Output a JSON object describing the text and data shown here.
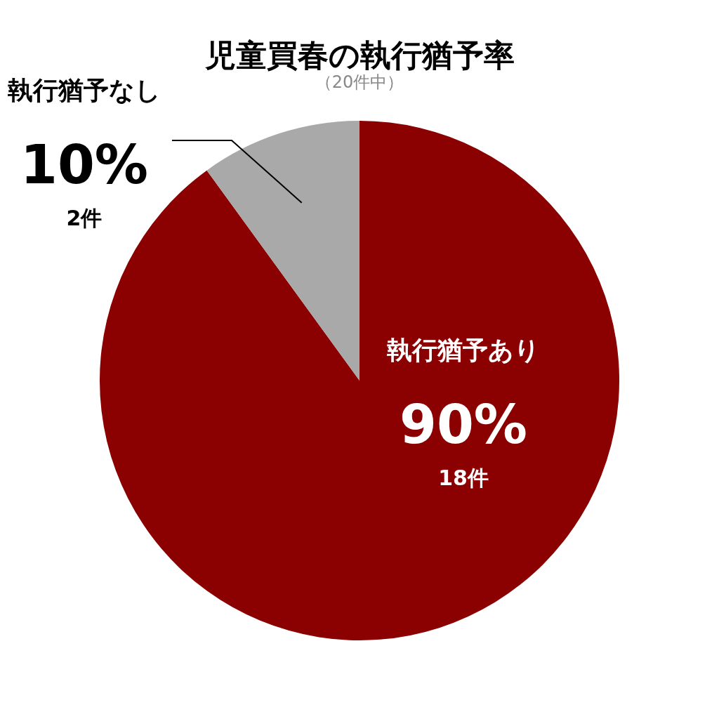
{
  "chart_data": {
    "type": "pie",
    "title": "児童買春の執行猶予率",
    "subtitle": "（20件中）",
    "categories": [
      "執行猶予あり",
      "執行猶予なし"
    ],
    "values": [
      90,
      10
    ],
    "colors": [
      "#8b0000",
      "#a9a9a9"
    ],
    "value_labels": [
      "90%",
      "10%"
    ],
    "annotations": [
      "18件",
      "2件"
    ]
  }
}
